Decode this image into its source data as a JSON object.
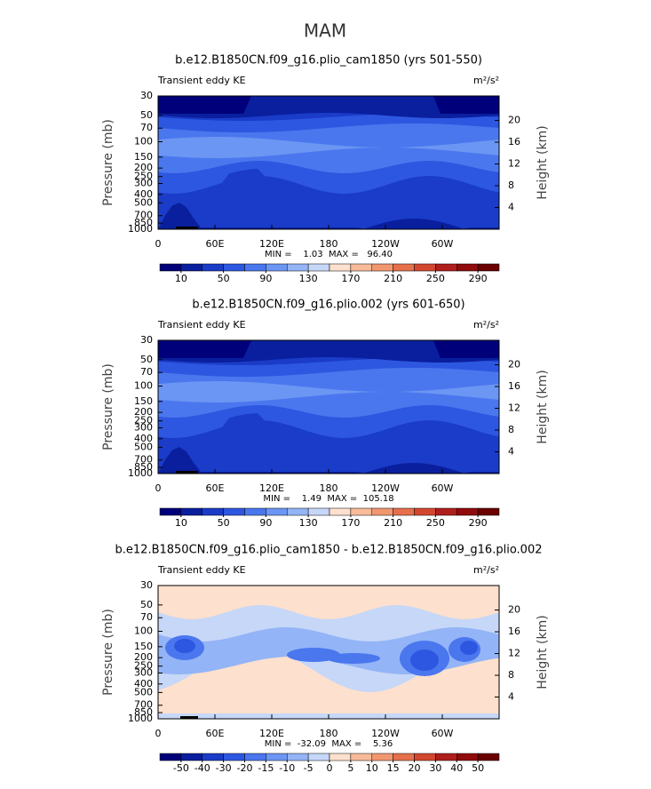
{
  "title": "MAM",
  "chart_data": [
    {
      "type": "contour",
      "title": "b.e12.B1850CN.f09_g16.plio_cam1850 (yrs 501-550)",
      "subtitle_left": "Transient eddy KE",
      "units": "m²/s²",
      "stats": "MIN =    1.03  MAX =   96.40",
      "ylabel": "Pressure (mb)",
      "y2label": "Height (km)",
      "log_y": true,
      "xlim": [
        0,
        360
      ],
      "xticks": [
        0,
        {
          "value": 60,
          "label": "60E"
        },
        {
          "value": 120,
          "label": "120E"
        },
        180,
        {
          "value": 240,
          "label": "120W"
        },
        {
          "value": 300,
          "label": "60W"
        }
      ],
      "ylim": [
        1000,
        30
      ],
      "yticks": [
        30,
        50,
        70,
        100,
        150,
        200,
        250,
        300,
        400,
        500,
        700,
        850,
        1000
      ],
      "y2lim": [
        0,
        24.5
      ],
      "y2ticks": [
        4,
        8,
        12,
        16,
        20
      ],
      "colorbar": {
        "clim": [
          -10,
          310
        ],
        "ticks": [
          10,
          50,
          90,
          130,
          170,
          210,
          250,
          290
        ],
        "colors": [
          "#00007a",
          "#0a1f9e",
          "#1a3cc8",
          "#2d57e0",
          "#4a77ee",
          "#6c96f3",
          "#93b4f6",
          "#c6d7f8",
          "#fde0cd",
          "#f7bb9a",
          "#f19770",
          "#e6704c",
          "#d24730",
          "#b01e1c",
          "#900b0b",
          "#6a0000"
        ]
      }
    },
    {
      "type": "contour",
      "title": "b.e12.B1850CN.f09_g16.plio.002 (yrs 601-650)",
      "subtitle_left": "Transient eddy KE",
      "units": "m²/s²",
      "stats": "MIN =    1.49  MAX =  105.18",
      "ylabel": "Pressure (mb)",
      "y2label": "Height (km)",
      "log_y": true,
      "xlim": [
        0,
        360
      ],
      "xticks": [
        0,
        {
          "value": 60,
          "label": "60E"
        },
        {
          "value": 120,
          "label": "120E"
        },
        180,
        {
          "value": 240,
          "label": "120W"
        },
        {
          "value": 300,
          "label": "60W"
        }
      ],
      "ylim": [
        1000,
        30
      ],
      "yticks": [
        30,
        50,
        70,
        100,
        150,
        200,
        250,
        300,
        400,
        500,
        700,
        850,
        1000
      ],
      "y2lim": [
        0,
        24.5
      ],
      "y2ticks": [
        4,
        8,
        12,
        16,
        20
      ],
      "colorbar": {
        "clim": [
          -10,
          310
        ],
        "ticks": [
          10,
          50,
          90,
          130,
          170,
          210,
          250,
          290
        ],
        "colors": [
          "#00007a",
          "#0a1f9e",
          "#1a3cc8",
          "#2d57e0",
          "#4a77ee",
          "#6c96f3",
          "#93b4f6",
          "#c6d7f8",
          "#fde0cd",
          "#f7bb9a",
          "#f19770",
          "#e6704c",
          "#d24730",
          "#b01e1c",
          "#900b0b",
          "#6a0000"
        ]
      }
    },
    {
      "type": "contour",
      "title": "b.e12.B1850CN.f09_g16.plio_cam1850 - b.e12.B1850CN.f09_g16.plio.002",
      "subtitle_left": "Transient eddy KE",
      "units": "m²/s²",
      "stats": "MIN =  -32.09  MAX =    5.36",
      "ylabel": "Pressure (mb)",
      "y2label": "Height (km)",
      "log_y": true,
      "xlim": [
        0,
        360
      ],
      "xticks": [
        0,
        {
          "value": 60,
          "label": "60E"
        },
        {
          "value": 120,
          "label": "120E"
        },
        180,
        {
          "value": 240,
          "label": "120W"
        },
        {
          "value": 300,
          "label": "60W"
        }
      ],
      "ylim": [
        1000,
        30
      ],
      "yticks": [
        30,
        50,
        70,
        100,
        150,
        200,
        250,
        300,
        400,
        500,
        700,
        850,
        1000
      ],
      "y2lim": [
        0,
        24.5
      ],
      "y2ticks": [
        4,
        8,
        12,
        16,
        20
      ],
      "colorbar": {
        "ticks": [
          -50,
          -40,
          -30,
          -20,
          -15,
          -10,
          -5,
          0,
          5,
          10,
          15,
          20,
          30,
          40,
          50
        ],
        "colors": [
          "#00007a",
          "#0a1f9e",
          "#1a3cc8",
          "#2d57e0",
          "#4a77ee",
          "#6c96f3",
          "#93b4f6",
          "#c6d7f8",
          "#fde0cd",
          "#f7bb9a",
          "#f19770",
          "#e6704c",
          "#d24730",
          "#b01e1c",
          "#900b0b",
          "#6a0000"
        ]
      }
    }
  ]
}
